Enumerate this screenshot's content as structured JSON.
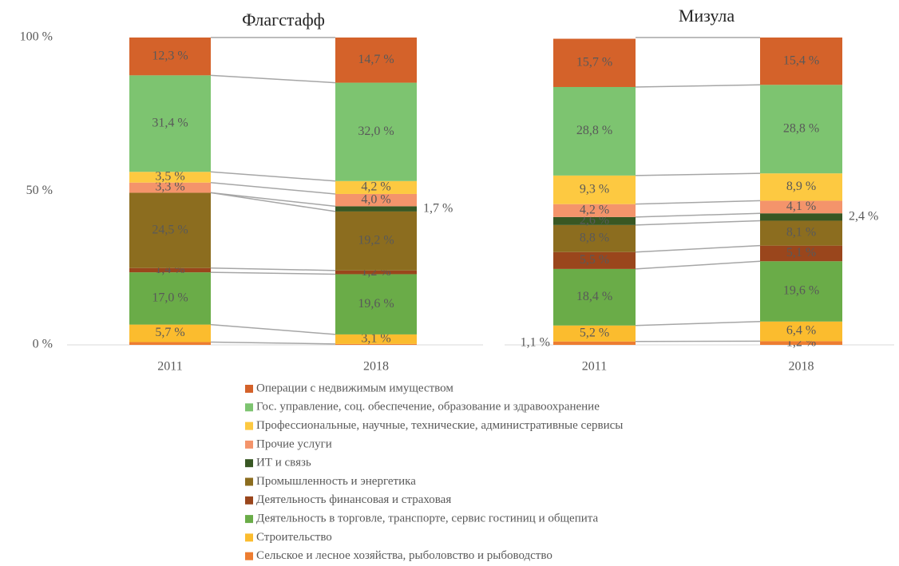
{
  "chart_data": [
    {
      "type": "bar",
      "stacked": true,
      "title": "Флагстафф",
      "categories": [
        "2011",
        "2018"
      ],
      "ylim": [
        0,
        100
      ],
      "yticks": [
        {
          "value": 0,
          "label": "0 %"
        },
        {
          "value": 50,
          "label": "50 %"
        },
        {
          "value": 100,
          "label": "100 %"
        }
      ],
      "series": [
        {
          "name": "Сельское и лесное хозяйства, рыболовство и рыбоводство",
          "color": "#ed7d31",
          "values": [
            0.9,
            0.3
          ],
          "value_labels": [
            null,
            null
          ]
        },
        {
          "name": "Строительство",
          "color": "#fbbc2e",
          "values": [
            5.7,
            3.1
          ],
          "value_labels": [
            "5,7 %",
            "3,1 %"
          ]
        },
        {
          "name": "Деятельность в торговле, транспорте, сервис гостиниц и общепита",
          "color": "#6aac48",
          "values": [
            17.0,
            19.6
          ],
          "value_labels": [
            "17,0 %",
            "19,6 %"
          ]
        },
        {
          "name": "Деятельность финансовая и страховая",
          "color": "#9a461c",
          "values": [
            1.4,
            1.2
          ],
          "value_labels": [
            "1,4 %",
            "1,2 %"
          ]
        },
        {
          "name": "Промышленность и энергетика",
          "color": "#8c6d1f",
          "values": [
            24.5,
            19.2
          ],
          "value_labels": [
            "24,5 %",
            "19,2 %"
          ]
        },
        {
          "name": "ИТ и связь",
          "color": "#385723",
          "values": [
            0,
            1.7
          ],
          "value_labels": [
            null,
            "1,7 %"
          ]
        },
        {
          "name": "Прочие услуги",
          "color": "#f4946b",
          "values": [
            3.3,
            4.0
          ],
          "value_labels": [
            "3,3 %",
            "4,0 %"
          ]
        },
        {
          "name": "Профессиональные, научные, технические, административные сервисы",
          "color": "#fdc941",
          "values": [
            3.5,
            4.2
          ],
          "value_labels": [
            "3,5 %",
            "4,2 %"
          ]
        },
        {
          "name": "Гос. управление, соц. обеспечение, образование и здравоохранение",
          "color": "#7dc470",
          "values": [
            31.4,
            32.0
          ],
          "value_labels": [
            "31,4 %",
            "32,0 %"
          ]
        },
        {
          "name": "Операции с недвижимым имуществом",
          "color": "#d4622a",
          "values": [
            12.3,
            14.7
          ],
          "value_labels": [
            "12,3 %",
            "14,7 %"
          ]
        }
      ]
    },
    {
      "type": "bar",
      "stacked": true,
      "title": "Мизула",
      "categories": [
        "2011",
        "2018"
      ],
      "ylim": [
        0,
        100
      ],
      "series": [
        {
          "color": "#ed7d31",
          "values": [
            1.1,
            1.2
          ],
          "value_labels": [
            "1,1 %",
            "1,2 %"
          ]
        },
        {
          "color": "#fbbc2e",
          "values": [
            5.2,
            6.4
          ],
          "value_labels": [
            "5,2 %",
            "6,4 %"
          ]
        },
        {
          "color": "#6aac48",
          "values": [
            18.4,
            19.6
          ],
          "value_labels": [
            "18,4 %",
            "19,6 %"
          ]
        },
        {
          "color": "#9a461c",
          "values": [
            5.5,
            5.1
          ],
          "value_labels": [
            "5,5 %",
            "5,1 %"
          ]
        },
        {
          "color": "#8c6d1f",
          "values": [
            8.8,
            8.1
          ],
          "value_labels": [
            "8,8 %",
            "8,1 %"
          ]
        },
        {
          "color": "#385723",
          "values": [
            2.6,
            2.4
          ],
          "value_labels": [
            "2,6 %",
            "2,4 %"
          ]
        },
        {
          "color": "#f4946b",
          "values": [
            4.2,
            4.1
          ],
          "value_labels": [
            "4,2 %",
            "4,1 %"
          ]
        },
        {
          "color": "#fdc941",
          "values": [
            9.3,
            8.9
          ],
          "value_labels": [
            "9,3 %",
            "8,9 %"
          ]
        },
        {
          "color": "#7dc470",
          "values": [
            28.8,
            28.8
          ],
          "value_labels": [
            "28,8 %",
            "28,8 %"
          ]
        },
        {
          "color": "#d4622a",
          "values": [
            15.7,
            15.4
          ],
          "value_labels": [
            "15,7 %",
            "15,4 %"
          ]
        }
      ]
    }
  ]
}
